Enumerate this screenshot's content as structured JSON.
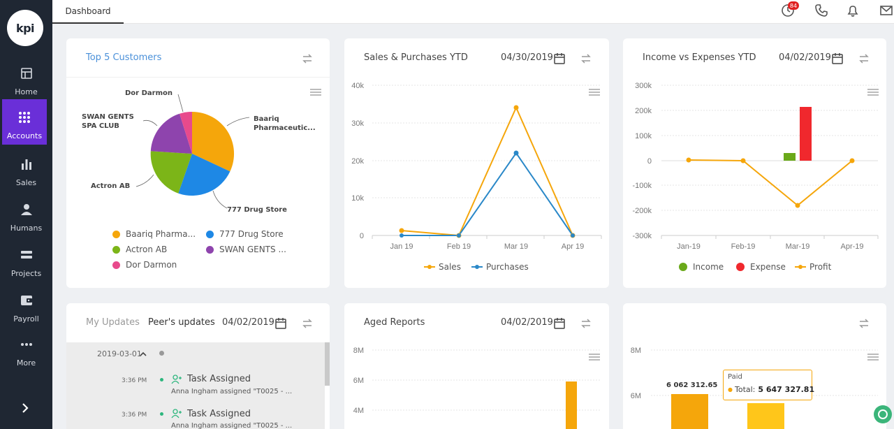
{
  "app": {
    "logo_text": "kpi"
  },
  "sidebar": {
    "items": [
      {
        "label": "Home",
        "icon": "home-icon"
      },
      {
        "label": "Accounts",
        "icon": "grid-icon",
        "active": true
      },
      {
        "label": "Sales",
        "icon": "bar-chart-icon"
      },
      {
        "label": "Humans",
        "icon": "person-icon"
      },
      {
        "label": "Projects",
        "icon": "projects-icon"
      },
      {
        "label": "Payroll",
        "icon": "wallet-icon"
      },
      {
        "label": "More",
        "icon": "more-dots-icon"
      }
    ],
    "accent": "#6a2fd8"
  },
  "topbar": {
    "tab": "Dashboard",
    "notification_count": "84"
  },
  "top_customers": {
    "title": "Top 5 Customers",
    "pie_labels": {
      "baariq": "Baariq",
      "baariq2": "Pharmaceutic...",
      "drug": "777 Drug Store",
      "actron": "Actron AB",
      "swan1": "SWAN GENTS",
      "swan2": "SPA CLUB",
      "dor": "Dor Darmon"
    },
    "legend": [
      "Baariq Pharma...",
      "777 Drug Store",
      "Actron AB",
      "SWAN GENTS ...",
      "Dor Darmon"
    ]
  },
  "sales_purchases": {
    "title": "Sales & Purchases YTD",
    "date": "04/30/2019",
    "legend": [
      "Sales",
      "Purchases"
    ]
  },
  "income_expenses": {
    "title": "Income vs Expenses YTD",
    "date": "04/02/2019",
    "legend": [
      "Income",
      "Expense",
      "Profit"
    ]
  },
  "updates": {
    "tab_my": "My Updates",
    "tab_peer": "Peer's updates",
    "date": "04/02/2019",
    "group_date": "2019-03-01",
    "items": [
      {
        "time": "3:36 PM",
        "title": "Task Assigned",
        "sub": "Anna Ingham assigned \"T0025 - ..."
      },
      {
        "time": "3:36 PM",
        "title": "Task Assigned",
        "sub": "Anna Ingham assigned \"T0025 - ..."
      }
    ]
  },
  "aged_reports": {
    "title": "Aged Reports",
    "date": "04/02/2019"
  },
  "paid_card": {
    "bar_label": "6 062 312.65",
    "tooltip_title": "Paid",
    "tooltip_label": "Total:",
    "tooltip_value": "5 647 327.81"
  },
  "chart_data": [
    {
      "type": "pie",
      "title": "Top 5 Customers",
      "categories": [
        "Baariq Pharmaceutic...",
        "777 Drug Store",
        "Actron AB",
        "SWAN GENTS SPA CLUB",
        "Dor Darmon"
      ],
      "values": [
        30,
        25,
        20,
        20,
        5
      ],
      "colors": [
        "#f5a60b",
        "#1e88e5",
        "#7cb518",
        "#8e44ad",
        "#e84a8c"
      ]
    },
    {
      "type": "line",
      "title": "Sales & Purchases YTD",
      "categories": [
        "Jan 19",
        "Feb 19",
        "Mar 19",
        "Apr 19"
      ],
      "series": [
        {
          "name": "Sales",
          "values": [
            1300,
            0,
            34000,
            0
          ],
          "color": "#f5a60b"
        },
        {
          "name": "Purchases",
          "values": [
            0,
            0,
            22000,
            0
          ],
          "color": "#2a88c8"
        }
      ],
      "yticks": [
        "0",
        "10k",
        "20k",
        "30k",
        "40k"
      ],
      "ylim": [
        0,
        40000
      ]
    },
    {
      "type": "bar",
      "title": "Income vs Expenses YTD",
      "categories": [
        "Jan-19",
        "Feb-19",
        "Mar-19",
        "Apr-19"
      ],
      "series": [
        {
          "name": "Income",
          "values": [
            0,
            0,
            30000,
            0
          ],
          "color": "#6aa91a"
        },
        {
          "name": "Expense",
          "values": [
            0,
            0,
            215000,
            0
          ],
          "color": "#f0282d"
        },
        {
          "name": "Profit",
          "values": [
            0,
            0,
            -180000,
            0
          ],
          "color": "#f5a60b"
        }
      ],
      "yticks": [
        "300k",
        "200k",
        "100k",
        "0",
        "-100k",
        "-200k",
        "-300k"
      ],
      "ylim": [
        -300000,
        300000
      ]
    },
    {
      "type": "bar",
      "title": "Aged Reports",
      "yticks": [
        "8M",
        "6M",
        "4M"
      ],
      "values": [
        5900000
      ],
      "color": "#f5a60b"
    },
    {
      "type": "bar",
      "yticks": [
        "8M",
        "6M"
      ],
      "categories": [
        "",
        "Paid"
      ],
      "values": [
        6062312.65,
        5647327.81
      ],
      "colors": [
        "#f5a60b",
        "#ffc61a"
      ]
    }
  ]
}
